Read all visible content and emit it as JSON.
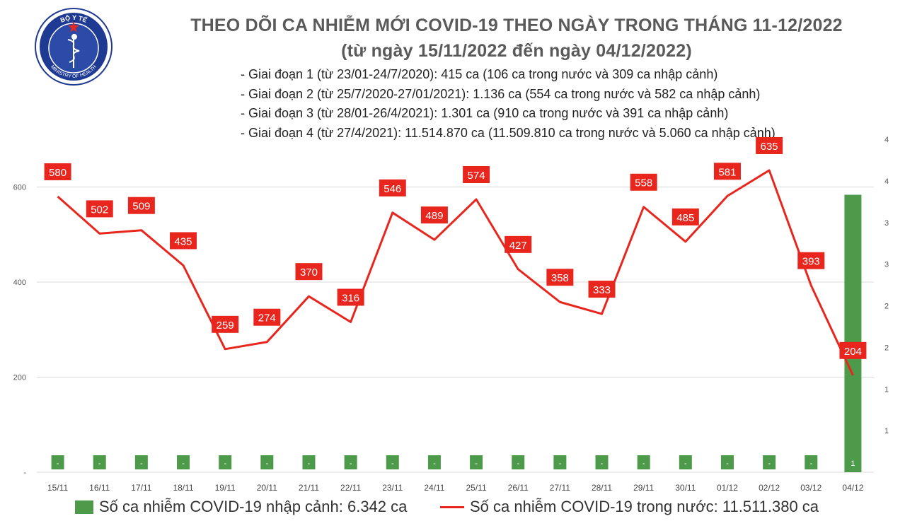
{
  "logo": {
    "top_text": "BỘ Y TẾ",
    "bottom_text": "MINISTRY OF HEALTH",
    "icon": "caduceus-icon",
    "colors": {
      "ring": "#1f3a93",
      "inner": "#2c4aa8",
      "star": "#e8261d"
    }
  },
  "header": {
    "title_line1": "THEO DÕI CA NHIỄM MỚI COVID-19 THEO NGÀY TRONG THÁNG 11-12/2022",
    "title_line2": "(từ ngày 15/11/2022 đến ngày 04/12/2022)",
    "stages": [
      "- Giai đoạn 1 (từ 23/01-24/7/2020): 415 ca (106 ca trong nước và 309 ca nhập cảnh)",
      "- Giai đoạn 2 (từ 25/7/2020-27/01/2021): 1.136 ca (554 ca trong nước và 582 ca nhập cảnh)",
      "- Giai đoạn 3 (từ 28/01-26/4/2021): 1.301 ca (910 ca trong nước và 391 ca nhập cảnh)",
      "- Giai đoạn 4 (từ 27/4/2021): 11.514.870 ca (11.509.810 ca trong nước và 5.060 ca nhập cảnh)"
    ]
  },
  "chart_data": {
    "type": "bar+line",
    "categories": [
      "15/11",
      "16/11",
      "17/11",
      "18/11",
      "19/11",
      "20/11",
      "21/11",
      "22/11",
      "23/11",
      "24/11",
      "25/11",
      "26/11",
      "27/11",
      "28/11",
      "29/11",
      "30/11",
      "01/12",
      "02/12",
      "03/12",
      "04/12"
    ],
    "series": [
      {
        "name": "Số ca nhiễm COVID-19 nhập cảnh: 6.342 ca",
        "type": "bar",
        "axis": "right",
        "color": "#4e9a4b",
        "values": [
          0,
          0,
          0,
          0,
          0,
          0,
          0,
          0,
          0,
          0,
          0,
          0,
          0,
          0,
          0,
          0,
          0,
          0,
          0,
          1
        ],
        "labels": [
          "-",
          "-",
          "-",
          "-",
          "-",
          "-",
          "-",
          "-",
          "-",
          "-",
          "-",
          "-",
          "-",
          "-",
          "-",
          "-",
          "-",
          "-",
          "-",
          "1"
        ]
      },
      {
        "name": "Số ca nhiễm COVID-19 trong nước: 11.511.380 ca",
        "type": "line",
        "axis": "left",
        "color": "#e8261d",
        "values": [
          580,
          502,
          509,
          435,
          259,
          274,
          370,
          316,
          546,
          489,
          574,
          427,
          358,
          333,
          558,
          485,
          581,
          635,
          393,
          204
        ]
      }
    ],
    "left_axis": {
      "ylim": [
        0,
        600
      ],
      "tick_labels": [
        "-",
        "200",
        "400",
        "600"
      ]
    },
    "right_axis": {
      "ylim": [
        0,
        1.2
      ],
      "tick_labels": [
        "",
        "1",
        "1",
        "2",
        "2",
        "3",
        "3",
        "4",
        "4"
      ]
    },
    "grid": "horizontal",
    "legend_position": "bottom"
  }
}
